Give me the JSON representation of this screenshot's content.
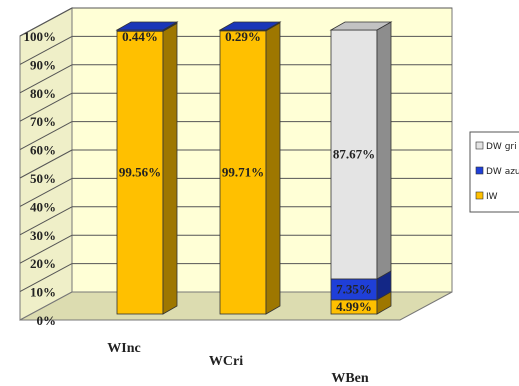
{
  "chart_data": {
    "type": "bar",
    "stacked": true,
    "three_d": true,
    "categories": [
      "WInc",
      "WCri",
      "WBen"
    ],
    "series": [
      {
        "name": "IW",
        "color": "#ffc000",
        "values": [
          99.56,
          99.71,
          4.99
        ],
        "labels": [
          "99.56%",
          "99.71%",
          "4.99%"
        ]
      },
      {
        "name": "DW azul",
        "color": "#1f3fd8",
        "values": [
          0.44,
          0.29,
          7.35
        ],
        "labels": [
          "0.44%",
          "0.29%",
          "7.35%"
        ]
      },
      {
        "name": "DW gris",
        "color": "#e4e4e4",
        "values": [
          0,
          0,
          87.67
        ],
        "labels": [
          "",
          "",
          "87.67%"
        ]
      }
    ],
    "legend": {
      "position": "right",
      "entries": [
        "DW gri",
        "DW azu",
        "IW"
      ]
    },
    "y_ticks": [
      "0%",
      "10%",
      "20%",
      "30%",
      "40%",
      "50%",
      "60%",
      "70%",
      "80%",
      "90%",
      "100%"
    ],
    "ylim": [
      0,
      100
    ],
    "grid": true,
    "colors": {
      "wall": "#ffffd6",
      "floor": "#dcdcb0",
      "grid": "#555555"
    }
  }
}
